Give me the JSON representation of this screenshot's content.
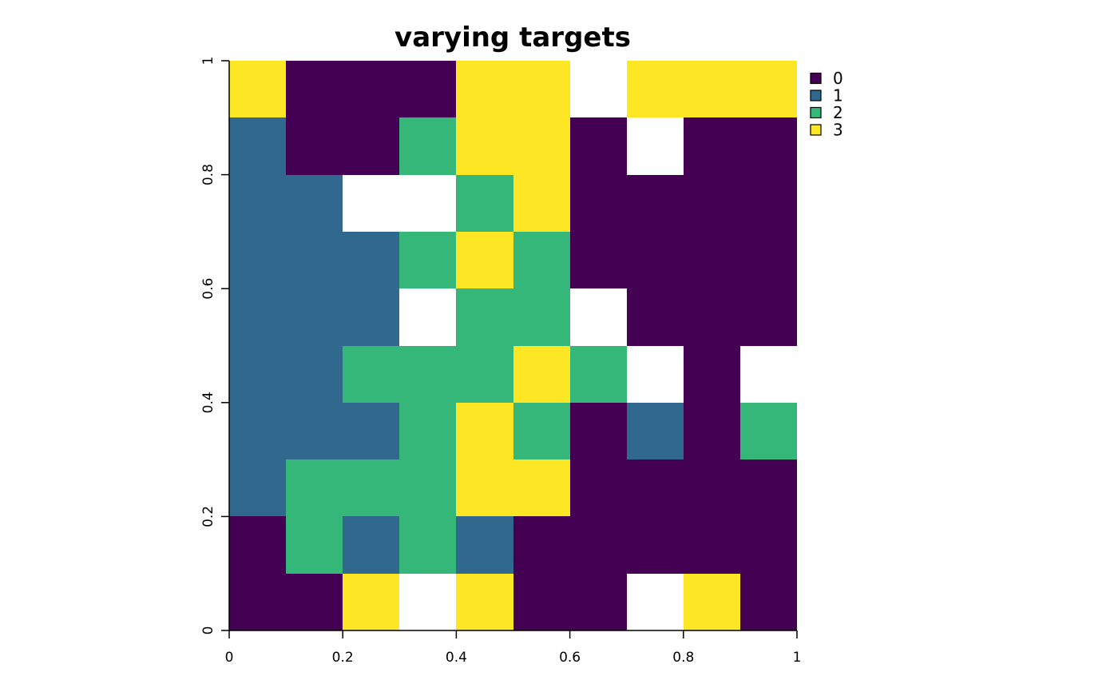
{
  "chart_data": {
    "type": "heatmap",
    "title": "varying targets",
    "xlabel": "",
    "ylabel": "",
    "xlim": [
      0,
      1
    ],
    "ylim": [
      0,
      1
    ],
    "x_ticks": [
      "0",
      "0.2",
      "0.4",
      "0.6",
      "0.8",
      "1"
    ],
    "y_ticks": [
      "0",
      "0.2",
      "0.4",
      "0.6",
      "0.8",
      "1"
    ],
    "ncols": 10,
    "nrows": 10,
    "grid": false,
    "legend_position": "right",
    "legend": [
      {
        "value": 0,
        "label": "0",
        "color": "#440154"
      },
      {
        "value": 1,
        "label": "1",
        "color": "#31688E"
      },
      {
        "value": 2,
        "label": "2",
        "color": "#35B779"
      },
      {
        "value": 3,
        "label": "3",
        "color": "#FDE725"
      }
    ],
    "na_color": "#FFFFFF",
    "cells_top_to_bottom": [
      [
        3,
        0,
        0,
        0,
        3,
        3,
        null,
        3,
        3,
        3
      ],
      [
        1,
        0,
        0,
        2,
        3,
        3,
        0,
        null,
        0,
        0
      ],
      [
        1,
        1,
        null,
        null,
        2,
        3,
        0,
        0,
        0,
        0
      ],
      [
        1,
        1,
        1,
        2,
        3,
        2,
        0,
        0,
        0,
        0
      ],
      [
        1,
        1,
        1,
        null,
        2,
        2,
        null,
        0,
        0,
        0
      ],
      [
        1,
        1,
        2,
        2,
        2,
        3,
        2,
        null,
        0,
        null
      ],
      [
        1,
        1,
        1,
        2,
        3,
        2,
        0,
        1,
        0,
        2
      ],
      [
        1,
        2,
        2,
        2,
        3,
        3,
        0,
        0,
        0,
        0
      ],
      [
        0,
        2,
        1,
        2,
        1,
        0,
        0,
        0,
        0,
        0
      ],
      [
        0,
        0,
        3,
        null,
        3,
        0,
        0,
        null,
        3,
        0
      ]
    ]
  }
}
